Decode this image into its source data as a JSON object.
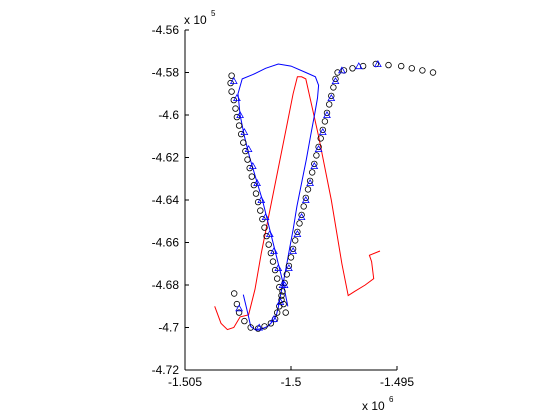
{
  "chart_data": {
    "type": "scatter",
    "title": "",
    "xlabel": "",
    "ylabel": "",
    "xlim": [
      -1505000.0,
      -1495000.0
    ],
    "ylim": [
      -472000.0,
      -456000.0
    ],
    "x_ticks": [
      -1505000.0,
      -1500000.0,
      -1495000.0
    ],
    "y_ticks": [
      -472000.0,
      -470000.0,
      -468000.0,
      -466000.0,
      -464000.0,
      -462000.0,
      -460000.0,
      -458000.0,
      -456000.0
    ],
    "x_tick_labels": [
      "-1.505",
      "-1.5",
      "-1.495"
    ],
    "y_tick_labels": [
      "-4.72",
      "-4.7",
      "-4.68",
      "-4.66",
      "-4.64",
      "-4.62",
      "-4.6",
      "-4.58",
      "-4.56"
    ],
    "x_multiplier": {
      "base": "x 10",
      "exponent": "6"
    },
    "y_multiplier": {
      "base": "x 10",
      "exponent": "5"
    },
    "grid": false,
    "legend": "none",
    "track_path": [
      [
        -1.5036,
        -469000
      ],
      [
        -1.5033,
        -469800
      ],
      [
        -1.503,
        -470100
      ],
      [
        -1.5027,
        -470000
      ],
      [
        -1.5024,
        -469500
      ],
      [
        -1.502,
        -469400
      ],
      [
        -1.5017,
        -468200
      ],
      [
        -1.5014,
        -466500
      ],
      [
        -1.501,
        -464500
      ],
      [
        -1.5006,
        -462500
      ],
      [
        -1.5002,
        -460500
      ],
      [
        -1.4999,
        -459000
      ],
      [
        -1.4997,
        -458200
      ],
      [
        -1.4995,
        -458200
      ],
      [
        -1.4993,
        -458300
      ],
      [
        -1.4987,
        -461000
      ],
      [
        -1.4981,
        -464000
      ],
      [
        -1.4976,
        -467000
      ],
      [
        -1.4973,
        -468500
      ],
      [
        -1.497,
        -468300
      ],
      [
        -1.4965,
        -468000
      ],
      [
        -1.4961,
        -467700
      ],
      [
        -1.4962,
        -466900
      ],
      [
        -1.4963,
        -466600
      ],
      [
        -1.4958,
        -466400
      ]
    ],
    "series": [
      {
        "name": "",
        "marker": "line",
        "color": "#0000ff",
        "points": [
          [
            -1.50225,
            -468450
          ],
          [
            -1.50212,
            -469000
          ],
          [
            -1.502,
            -469500
          ],
          [
            -1.5019,
            -469950
          ],
          [
            -1.5017,
            -470100
          ],
          [
            -1.50135,
            -470050
          ],
          [
            -1.5011,
            -469950
          ],
          [
            -1.50085,
            -469700
          ],
          [
            -1.5007,
            -469450
          ],
          [
            -1.5006,
            -469050
          ],
          [
            -1.5005,
            -468500
          ],
          [
            -1.50035,
            -467800
          ],
          [
            -1.5002,
            -467000
          ],
          [
            -1.50005,
            -466200
          ],
          [
            -1.4999,
            -465400
          ],
          [
            -1.49972,
            -464300
          ],
          [
            -1.4995,
            -463200
          ],
          [
            -1.49928,
            -462100
          ],
          [
            -1.49908,
            -461000
          ],
          [
            -1.49888,
            -459950
          ],
          [
            -1.49875,
            -459200
          ],
          [
            -1.4987,
            -458600
          ],
          [
            -1.49885,
            -458200
          ],
          [
            -1.4993,
            -458000
          ],
          [
            -1.5,
            -457700
          ],
          [
            -1.5006,
            -457600
          ],
          [
            -1.5012,
            -457800
          ],
          [
            -1.5018,
            -458100
          ],
          [
            -1.5023,
            -458300
          ],
          [
            -1.5025,
            -459000
          ],
          [
            -1.5024,
            -460000
          ],
          [
            -1.5022,
            -461000
          ],
          [
            -1.50195,
            -462000
          ],
          [
            -1.50165,
            -463000
          ],
          [
            -1.50135,
            -464000
          ],
          [
            -1.5011,
            -465000
          ],
          [
            -1.50085,
            -466000
          ],
          [
            -1.5006,
            -467000
          ],
          [
            -1.50035,
            -468000
          ],
          [
            -1.50015,
            -469000
          ]
        ]
      },
      {
        "name": "",
        "marker": "circle",
        "color": "#000000",
        "points": [
          [
            -1.50268,
            -468400
          ],
          [
            -1.50255,
            -468900
          ],
          [
            -1.50245,
            -469300
          ],
          [
            -1.5022,
            -469700
          ],
          [
            -1.5019,
            -470000
          ],
          [
            -1.50155,
            -470050
          ],
          [
            -1.50125,
            -469950
          ],
          [
            -1.50095,
            -469800
          ],
          [
            -1.50075,
            -469600
          ],
          [
            -1.50065,
            -469300
          ],
          [
            -1.50055,
            -469000
          ],
          [
            -1.50045,
            -468700
          ],
          [
            -1.5004,
            -468300
          ],
          [
            -1.5003,
            -467900
          ],
          [
            -1.5002,
            -467500
          ],
          [
            -1.5001,
            -467100
          ],
          [
            -1.5,
            -466700
          ],
          [
            -1.4999,
            -466300
          ],
          [
            -1.4998,
            -465900
          ],
          [
            -1.4997,
            -465500
          ],
          [
            -1.4996,
            -465100
          ],
          [
            -1.4995,
            -464700
          ],
          [
            -1.4994,
            -464300
          ],
          [
            -1.4993,
            -463900
          ],
          [
            -1.4992,
            -463500
          ],
          [
            -1.4991,
            -463100
          ],
          [
            -1.499,
            -462700
          ],
          [
            -1.4989,
            -462300
          ],
          [
            -1.4988,
            -461900
          ],
          [
            -1.4987,
            -461500
          ],
          [
            -1.4986,
            -461100
          ],
          [
            -1.4985,
            -460700
          ],
          [
            -1.4984,
            -460300
          ],
          [
            -1.4983,
            -459900
          ],
          [
            -1.4982,
            -459500
          ],
          [
            -1.4981,
            -459100
          ],
          [
            -1.498,
            -458700
          ],
          [
            -1.4979,
            -458300
          ],
          [
            -1.4978,
            -458000
          ],
          [
            -1.4975,
            -457900
          ],
          [
            -1.4971,
            -457800
          ],
          [
            -1.4966,
            -457700
          ],
          [
            -1.496,
            -457600
          ],
          [
            -1.4954,
            -457650
          ],
          [
            -1.4948,
            -457700
          ],
          [
            -1.4943,
            -457800
          ],
          [
            -1.4938,
            -457900
          ],
          [
            -1.4933,
            -458000
          ],
          [
            -1.5028,
            -458150
          ],
          [
            -1.50285,
            -458500
          ],
          [
            -1.5028,
            -458900
          ],
          [
            -1.5027,
            -459300
          ],
          [
            -1.50262,
            -459700
          ],
          [
            -1.50255,
            -460100
          ],
          [
            -1.50245,
            -460500
          ],
          [
            -1.50235,
            -460900
          ],
          [
            -1.50225,
            -461300
          ],
          [
            -1.50215,
            -461700
          ],
          [
            -1.50205,
            -462100
          ],
          [
            -1.50195,
            -462500
          ],
          [
            -1.50185,
            -462900
          ],
          [
            -1.50175,
            -463300
          ],
          [
            -1.50165,
            -463700
          ],
          [
            -1.50155,
            -464100
          ],
          [
            -1.50145,
            -464500
          ],
          [
            -1.50135,
            -464900
          ],
          [
            -1.50125,
            -465300
          ],
          [
            -1.50115,
            -465700
          ],
          [
            -1.50105,
            -466100
          ],
          [
            -1.50095,
            -466500
          ],
          [
            -1.50085,
            -466900
          ],
          [
            -1.50075,
            -467300
          ],
          [
            -1.50065,
            -467700
          ],
          [
            -1.50055,
            -468100
          ],
          [
            -1.50045,
            -468500
          ],
          [
            -1.50035,
            -468900
          ],
          [
            -1.50025,
            -469300
          ]
        ]
      },
      {
        "name": "",
        "marker": "triangle",
        "color": "#0000ff",
        "points": [
          [
            -1.50245,
            -469100
          ],
          [
            -1.5015,
            -470000
          ],
          [
            -1.5008,
            -469600
          ],
          [
            -1.5005,
            -468800
          ],
          [
            -1.5003,
            -468000
          ],
          [
            -1.5001,
            -467200
          ],
          [
            -1.4999,
            -466400
          ],
          [
            -1.4997,
            -465600
          ],
          [
            -1.4995,
            -464800
          ],
          [
            -1.4993,
            -464000
          ],
          [
            -1.4991,
            -463200
          ],
          [
            -1.4989,
            -462400
          ],
          [
            -1.4987,
            -461600
          ],
          [
            -1.4985,
            -460800
          ],
          [
            -1.4983,
            -460000
          ],
          [
            -1.4981,
            -459200
          ],
          [
            -1.4979,
            -458400
          ],
          [
            -1.4976,
            -457900
          ],
          [
            -1.4968,
            -457700
          ],
          [
            -1.4959,
            -457600
          ],
          [
            -1.5027,
            -458400
          ],
          [
            -1.50255,
            -459200
          ],
          [
            -1.5024,
            -460000
          ],
          [
            -1.5022,
            -460800
          ],
          [
            -1.502,
            -461600
          ],
          [
            -1.5018,
            -462400
          ],
          [
            -1.5016,
            -463200
          ],
          [
            -1.5014,
            -464000
          ],
          [
            -1.5012,
            -464800
          ],
          [
            -1.501,
            -465600
          ],
          [
            -1.5008,
            -466400
          ],
          [
            -1.5006,
            -467200
          ],
          [
            -1.5004,
            -468000
          ]
        ]
      }
    ]
  }
}
